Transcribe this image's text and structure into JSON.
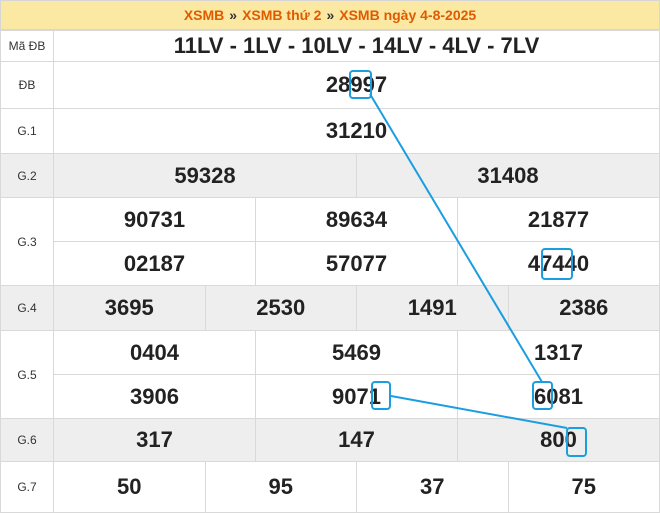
{
  "header": {
    "crumb1": "XSMB",
    "crumb2": "XSMB thứ 2",
    "crumb3": "XSMB ngày 4-8-2025",
    "separator": "»"
  },
  "codes_label": "Mã ĐB",
  "codes": "11LV - 1LV - 10LV - 14LV - 4LV - 7LV",
  "labels": {
    "db": "ĐB",
    "g1": "G.1",
    "g2": "G.2",
    "g3": "G.3",
    "g4": "G.4",
    "g5": "G.5",
    "g6": "G.6",
    "g7": "G.7"
  },
  "prizes": {
    "db": "28997",
    "g1": "31210",
    "g2": [
      "59328",
      "31408"
    ],
    "g3": [
      "90731",
      "89634",
      "21877",
      "02187",
      "57077",
      "47440"
    ],
    "g4": [
      "3695",
      "2530",
      "1491",
      "2386"
    ],
    "g5": [
      "0404",
      "5469",
      "1317",
      "3906",
      "9071",
      "6081"
    ],
    "g6": [
      "317",
      "147",
      "800"
    ],
    "g7": [
      "50",
      "95",
      "37",
      "75"
    ]
  },
  "colors": {
    "header_bg": "#fbe9a3",
    "accent": "#d0621b",
    "codes": "#1f5fa8",
    "highlight": "#1a9ee0",
    "row_gray": "#eeeeee"
  }
}
